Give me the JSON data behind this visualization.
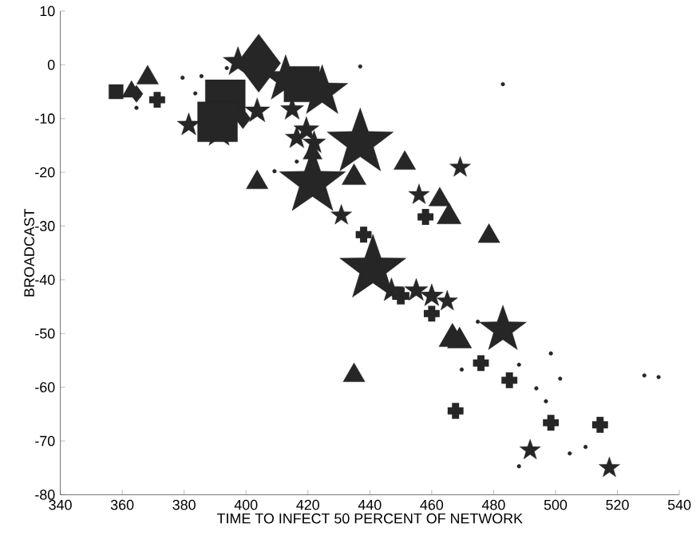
{
  "chart_data": {
    "type": "bubble",
    "xlabel": "TIME TO INFECT 50 PERCENT OF NETWORK",
    "ylabel": "BROADCAST",
    "xlim": [
      340,
      540
    ],
    "ylim": [
      -80,
      10
    ],
    "xticks": [
      340,
      360,
      380,
      400,
      420,
      440,
      460,
      480,
      500,
      520,
      540
    ],
    "yticks": [
      -80,
      -70,
      -60,
      -50,
      -40,
      -30,
      -20,
      -10,
      0,
      10
    ],
    "grid": false,
    "series": [
      {
        "color": "#262626",
        "marker": "square",
        "x": [
          358,
          393.3,
          390.8,
          418
        ],
        "values": [
          -5,
          -6.5,
          -10.6,
          -3.6
        ],
        "sizes": [
          0.13,
          1,
          1,
          0.79
        ]
      },
      {
        "color": "#262626",
        "marker": "diamond",
        "x": [
          404.1,
          364.6,
          399
        ],
        "values": [
          0.3,
          -5.4,
          -10
        ],
        "sizes": [
          0.8,
          0.07,
          0.1
        ]
      },
      {
        "color": "#262626",
        "marker": "star",
        "x": [
          397.4,
          412.8,
          424.6,
          436.9,
          421.5,
          441,
          391.3
        ],
        "values": [
          0.5,
          -2.7,
          -5,
          -14.5,
          -21.9,
          -38,
          -12.4
        ],
        "sizes": [
          0.18,
          0.45,
          0.54,
          0.9,
          0.9,
          0.9,
          0.22
        ]
      },
      {
        "color": "#262626",
        "marker": "star",
        "x": [
          381.5,
          403.6,
          414.9,
          419.5,
          416.4,
          422,
          430.8,
          469.2,
          455.9,
          483,
          491.8,
          517.4,
          447,
          455,
          460,
          465
        ],
        "values": [
          -11.2,
          -8.6,
          -8.3,
          -12.1,
          -13.6,
          -14.5,
          -28,
          -19.1,
          -24.2,
          -49.3,
          -71.7,
          -75,
          -42,
          -42,
          -43,
          -44
        ],
        "sizes": [
          0.11,
          0.13,
          0.11,
          0.13,
          0.11,
          0.11,
          0.09,
          0.09,
          0.09,
          0.45,
          0.09,
          0.09,
          0.12,
          0.11,
          0.11,
          0.09
        ]
      },
      {
        "color": "#262626",
        "marker": "triangle",
        "x": [
          368.2,
          363,
          421.5,
          434.9,
          403.6,
          451.3,
          462.6,
          465.6,
          478.5,
          466.7,
          469,
          434.9
        ],
        "values": [
          -2.4,
          -5,
          -16.5,
          -21,
          -21.9,
          -18.3,
          -25.1,
          -28.3,
          -31.9,
          -51,
          -51.4,
          -57.8
        ],
        "sizes": [
          0.13,
          0.1,
          0.1,
          0.16,
          0.13,
          0.13,
          0.13,
          0.16,
          0.13,
          0.2,
          0.16,
          0.13
        ]
      },
      {
        "color": "#262626",
        "marker": "cross",
        "x": [
          371.3,
          438,
          458,
          460,
          475.9,
          485.1,
          467.7,
          498.5,
          514.4,
          450
        ],
        "values": [
          -6.5,
          -31.6,
          -28.3,
          -46.3,
          -55.5,
          -58.7,
          -64.4,
          -66.6,
          -67,
          -43
        ],
        "sizes": [
          0.11,
          0.11,
          0.11,
          0.11,
          0.11,
          0.11,
          0.11,
          0.11,
          0.11,
          0.13
        ]
      },
      {
        "color": "#262626",
        "marker": "circle",
        "x": [
          379.5,
          385.6,
          383.6,
          364.6,
          393.8,
          409.2,
          436.9,
          416.4,
          483,
          474.9,
          469.7,
          488.2,
          498.5,
          501.5,
          493.8,
          496.9,
          509.7,
          504.6,
          488.2,
          528.7,
          533.3
        ],
        "values": [
          -2.4,
          -2.1,
          -5.3,
          -8,
          -0.6,
          -19.8,
          -0.3,
          -18,
          -3.6,
          -47.8,
          -56.7,
          -55.8,
          -53.7,
          -58.4,
          -60.2,
          -62.6,
          -71.1,
          -72.3,
          -74.7,
          -57.8,
          -58.1
        ],
        "sizes": [
          0.007,
          0.007,
          0.007,
          0.007,
          0.007,
          0.007,
          0.007,
          0.007,
          0.007,
          0.007,
          0.007,
          0.007,
          0.007,
          0.007,
          0.007,
          0.007,
          0.007,
          0.007,
          0.007,
          0.007,
          0.007
        ]
      }
    ]
  }
}
